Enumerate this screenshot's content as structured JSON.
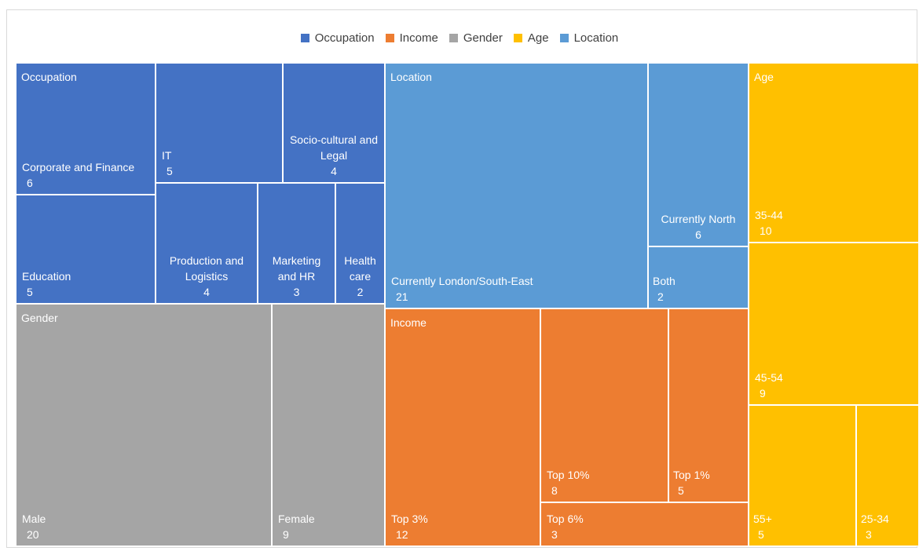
{
  "chart_data": {
    "type": "treemap",
    "title": "",
    "legend": {
      "placement": "top",
      "entries": [
        {
          "name": "Occupation",
          "color": "#4472C4"
        },
        {
          "name": "Income",
          "color": "#ED7D31"
        },
        {
          "name": "Gender",
          "color": "#A5A5A5"
        },
        {
          "name": "Age",
          "color": "#FFC000"
        },
        {
          "name": "Location",
          "color": "#5B9BD5"
        }
      ]
    },
    "groups": [
      {
        "name": "Occupation",
        "color": "#4472C4",
        "items": [
          {
            "label": "Corporate and Finance",
            "value": 6
          },
          {
            "label": "IT",
            "value": 5
          },
          {
            "label": "Socio-cultural and Legal",
            "value": 4
          },
          {
            "label": "Education",
            "value": 5
          },
          {
            "label": "Production and Logistics",
            "value": 4
          },
          {
            "label": "Marketing and HR",
            "value": 3
          },
          {
            "label": "Health care",
            "value": 2
          }
        ]
      },
      {
        "name": "Gender",
        "color": "#A5A5A5",
        "items": [
          {
            "label": "Male",
            "value": 20
          },
          {
            "label": "Female",
            "value": 9
          }
        ]
      },
      {
        "name": "Location",
        "color": "#5B9BD5",
        "items": [
          {
            "label": "Currently London/South-East",
            "value": 21
          },
          {
            "label": "Currently North",
            "value": 6
          },
          {
            "label": "Both",
            "value": 2
          }
        ]
      },
      {
        "name": "Income",
        "color": "#ED7D31",
        "items": [
          {
            "label": "Top 3%",
            "value": 12
          },
          {
            "label": "Top 10%",
            "value": 8
          },
          {
            "label": "Top 1%",
            "value": 5
          },
          {
            "label": "Top 6%",
            "value": 3
          }
        ]
      },
      {
        "name": "Age",
        "color": "#FFC000",
        "items": [
          {
            "label": "35-44",
            "value": 10
          },
          {
            "label": "45-54",
            "value": 9
          },
          {
            "label": "55+",
            "value": 5
          },
          {
            "label": "25-34",
            "value": 3
          }
        ]
      }
    ]
  }
}
